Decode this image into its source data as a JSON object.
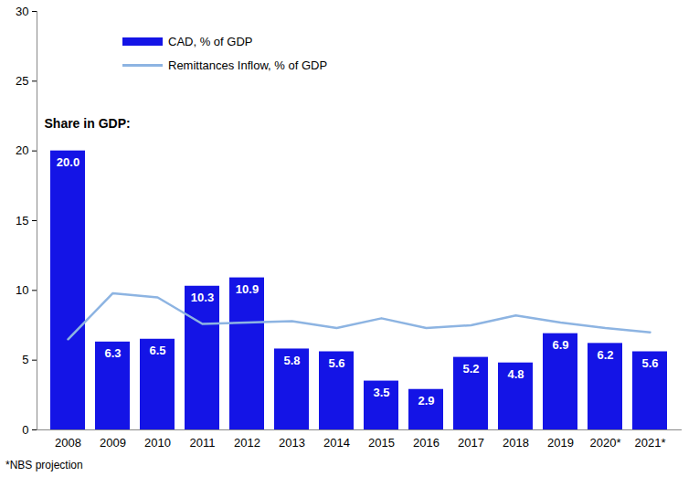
{
  "chart_data": {
    "type": "bar",
    "subtitle": "Share in GDP:",
    "caption": "*NBS projection",
    "categories": [
      "2008",
      "2009",
      "2010",
      "2011",
      "2012",
      "2013",
      "2014",
      "2015",
      "2016",
      "2017",
      "2018",
      "2019",
      "2020*",
      "2021*"
    ],
    "series": [
      {
        "name": "CAD, % of GDP",
        "type": "bar",
        "color": "#1414e6",
        "values": [
          20.0,
          6.3,
          6.5,
          10.3,
          10.9,
          5.8,
          5.6,
          3.5,
          2.9,
          5.2,
          4.8,
          6.9,
          6.2,
          5.6
        ],
        "value_labels": [
          "20.0",
          "6.3",
          "6.5",
          "10.3",
          "10.9",
          "5.8",
          "5.6",
          "3.5",
          "2.9",
          "5.2",
          "4.8",
          "6.9",
          "6.2",
          "5.6"
        ]
      },
      {
        "name": "Remittances Inflow, % of GDP",
        "type": "line",
        "color": "#8db4e2",
        "values": [
          6.5,
          9.8,
          9.5,
          7.6,
          7.7,
          7.8,
          7.3,
          8.0,
          7.3,
          7.5,
          8.2,
          7.7,
          7.3,
          7.0
        ]
      }
    ],
    "ylim": [
      0,
      30
    ],
    "yticks": [
      0,
      5,
      10,
      15,
      20,
      25,
      30
    ],
    "grid": false,
    "legend": "top-left",
    "data_labels": true
  }
}
